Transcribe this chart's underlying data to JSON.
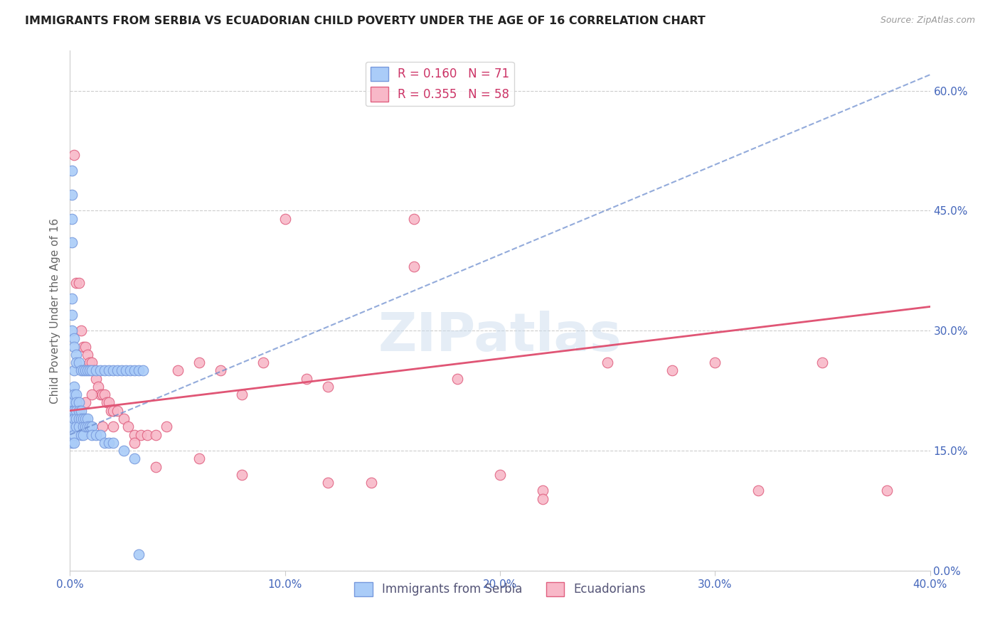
{
  "title": "IMMIGRANTS FROM SERBIA VS ECUADORIAN CHILD POVERTY UNDER THE AGE OF 16 CORRELATION CHART",
  "source": "Source: ZipAtlas.com",
  "ylabel": "Child Poverty Under the Age of 16",
  "xlim": [
    0.0,
    0.4
  ],
  "ylim": [
    0.0,
    0.65
  ],
  "xticks": [
    0.0,
    0.1,
    0.2,
    0.3,
    0.4
  ],
  "xtick_labels": [
    "0.0%",
    "10.0%",
    "20.0%",
    "30.0%",
    "40.0%"
  ],
  "yticks_right": [
    0.0,
    0.15,
    0.3,
    0.45,
    0.6
  ],
  "ytick_labels_right": [
    "0.0%",
    "15.0%",
    "30.0%",
    "45.0%",
    "60.0%"
  ],
  "series1_label": "Immigrants from Serbia",
  "series1_color": "#aaccf8",
  "series1_edge_color": "#7799dd",
  "series1_R": 0.16,
  "series1_N": 71,
  "series1_line_color": "#6688cc",
  "series2_label": "Ecuadorians",
  "series2_color": "#f8b8c8",
  "series2_edge_color": "#e06080",
  "series2_R": 0.355,
  "series2_N": 58,
  "series2_line_color": "#e05575",
  "grid_color": "#cccccc",
  "background_color": "#ffffff",
  "title_color": "#222222",
  "axis_color": "#4466bb",
  "watermark": "ZIPatlas",
  "serbia_x": [
    0.001,
    0.001,
    0.001,
    0.001,
    0.001,
    0.001,
    0.001,
    0.001,
    0.002,
    0.002,
    0.002,
    0.002,
    0.002,
    0.002,
    0.002,
    0.003,
    0.003,
    0.003,
    0.003,
    0.003,
    0.004,
    0.004,
    0.004,
    0.004,
    0.005,
    0.005,
    0.005,
    0.006,
    0.006,
    0.006,
    0.007,
    0.007,
    0.008,
    0.008,
    0.009,
    0.01,
    0.01,
    0.012,
    0.014,
    0.016,
    0.018,
    0.02,
    0.025,
    0.03,
    0.032,
    0.001,
    0.001,
    0.001,
    0.002,
    0.002,
    0.003,
    0.003,
    0.004,
    0.005,
    0.006,
    0.007,
    0.008,
    0.009,
    0.01,
    0.012,
    0.014,
    0.016,
    0.018,
    0.02,
    0.022,
    0.024,
    0.026,
    0.028,
    0.03,
    0.032,
    0.034
  ],
  "serbia_y": [
    0.5,
    0.47,
    0.44,
    0.41,
    0.21,
    0.2,
    0.18,
    0.16,
    0.25,
    0.23,
    0.22,
    0.2,
    0.19,
    0.17,
    0.16,
    0.22,
    0.21,
    0.2,
    0.19,
    0.18,
    0.21,
    0.2,
    0.19,
    0.18,
    0.2,
    0.19,
    0.17,
    0.19,
    0.18,
    0.17,
    0.19,
    0.18,
    0.19,
    0.18,
    0.18,
    0.18,
    0.17,
    0.17,
    0.17,
    0.16,
    0.16,
    0.16,
    0.15,
    0.14,
    0.02,
    0.34,
    0.32,
    0.3,
    0.29,
    0.28,
    0.27,
    0.26,
    0.26,
    0.25,
    0.25,
    0.25,
    0.25,
    0.25,
    0.25,
    0.25,
    0.25,
    0.25,
    0.25,
    0.25,
    0.25,
    0.25,
    0.25,
    0.25,
    0.25,
    0.25,
    0.25
  ],
  "ecuador_x": [
    0.002,
    0.003,
    0.004,
    0.005,
    0.006,
    0.007,
    0.008,
    0.009,
    0.01,
    0.011,
    0.012,
    0.013,
    0.014,
    0.015,
    0.016,
    0.017,
    0.018,
    0.019,
    0.02,
    0.022,
    0.025,
    0.027,
    0.03,
    0.033,
    0.036,
    0.04,
    0.045,
    0.05,
    0.06,
    0.07,
    0.08,
    0.09,
    0.1,
    0.11,
    0.12,
    0.14,
    0.16,
    0.18,
    0.2,
    0.22,
    0.25,
    0.28,
    0.3,
    0.32,
    0.35,
    0.38,
    0.005,
    0.007,
    0.01,
    0.015,
    0.02,
    0.03,
    0.04,
    0.06,
    0.08,
    0.12,
    0.16,
    0.22
  ],
  "ecuador_y": [
    0.52,
    0.36,
    0.36,
    0.3,
    0.28,
    0.28,
    0.27,
    0.26,
    0.26,
    0.25,
    0.24,
    0.23,
    0.22,
    0.22,
    0.22,
    0.21,
    0.21,
    0.2,
    0.2,
    0.2,
    0.19,
    0.18,
    0.17,
    0.17,
    0.17,
    0.17,
    0.18,
    0.25,
    0.26,
    0.25,
    0.22,
    0.26,
    0.44,
    0.24,
    0.23,
    0.11,
    0.44,
    0.24,
    0.12,
    0.1,
    0.26,
    0.25,
    0.26,
    0.1,
    0.26,
    0.1,
    0.19,
    0.21,
    0.22,
    0.18,
    0.18,
    0.16,
    0.13,
    0.14,
    0.12,
    0.11,
    0.38,
    0.09
  ]
}
